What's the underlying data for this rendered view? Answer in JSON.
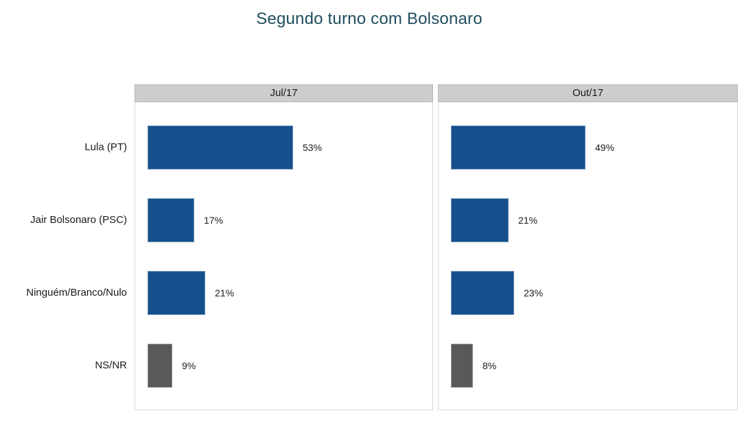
{
  "title": "Segundo turno com Bolsonaro",
  "chart_data": {
    "type": "bar",
    "orientation": "horizontal",
    "title": "Segundo turno com Bolsonaro",
    "categories": [
      "Lula (PT)",
      "Jair Bolsonaro (PSC)",
      "Ninguém/Branco/Nulo",
      "NS/NR"
    ],
    "series": [
      {
        "name": "Jul/17",
        "values": [
          53,
          17,
          21,
          9
        ]
      },
      {
        "name": "Out/17",
        "values": [
          49,
          21,
          23,
          8
        ]
      }
    ],
    "value_suffix": "%",
    "xlim": [
      0,
      105
    ],
    "grid": false,
    "legend_position": "none",
    "facet_layout": "columns",
    "bar_colors_by_category": [
      "#15508C",
      "#15508C",
      "#15508C",
      "#595959"
    ]
  },
  "colors": {
    "title_text": "#1F4E5F",
    "bar_primary": "#15508C",
    "bar_nsnr": "#595959",
    "panel_header_bg": "#CDCDCD",
    "panel_header_border": "#B9B9B9",
    "panel_border": "#D9D9D9",
    "label_text": "#1A1A1A"
  }
}
